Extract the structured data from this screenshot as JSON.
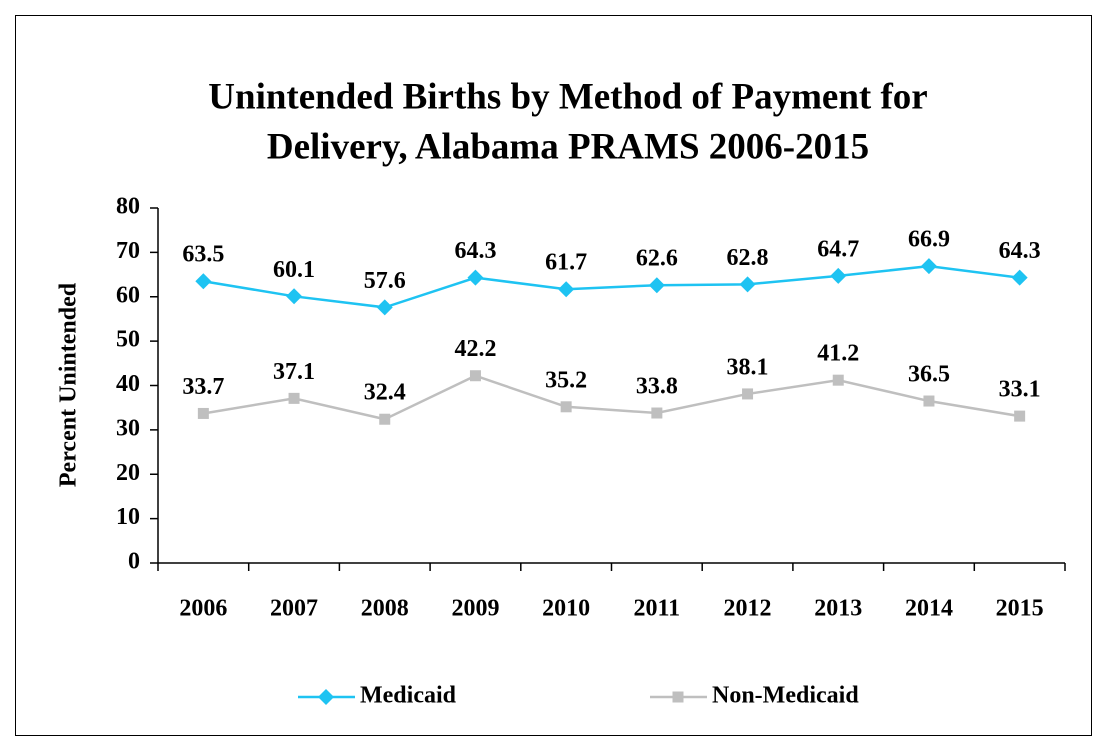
{
  "chart_data": {
    "type": "line",
    "title": [
      "Unintended Births by Method of Payment for",
      "Delivery, Alabama PRAMS 2006-2015"
    ],
    "y_label": "Percent Unintended",
    "categories": [
      "2006",
      "2007",
      "2008",
      "2009",
      "2010",
      "2011",
      "2012",
      "2013",
      "2014",
      "2015"
    ],
    "series": [
      {
        "name": "Medicaid",
        "color": "#1ec3f2",
        "marker": "diamond",
        "values": [
          63.5,
          60.1,
          57.6,
          64.3,
          61.7,
          62.6,
          62.8,
          64.7,
          66.9,
          64.3
        ]
      },
      {
        "name": "Non-Medicaid",
        "color": "#bfbfbf",
        "marker": "square",
        "values": [
          33.7,
          37.1,
          32.4,
          42.2,
          35.2,
          33.8,
          38.1,
          41.2,
          36.5,
          33.1
        ]
      }
    ],
    "ylim": [
      0,
      80
    ],
    "yticks": [
      0,
      10,
      20,
      30,
      40,
      50,
      60,
      70,
      80
    ],
    "grid": false,
    "legend": "bottom"
  }
}
